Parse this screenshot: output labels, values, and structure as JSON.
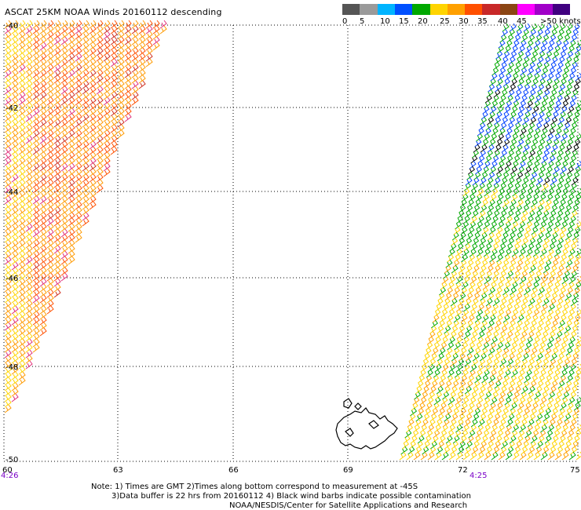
{
  "title": "ASCAT 25KM NOAA Winds 20160112 descending",
  "legend": {
    "colors": [
      "#555555",
      "#9a9a9a",
      "#00b4ff",
      "#0050ff",
      "#00a800",
      "#ffd400",
      "#ffa000",
      "#ff5000",
      "#c82828",
      "#8b4513",
      "#ff00ff",
      "#a000c8",
      "#400080"
    ],
    "labels": [
      "0",
      "5",
      "10",
      "15",
      "20",
      "25",
      "30",
      "35",
      "40",
      "45",
      ">50 knots"
    ]
  },
  "map": {
    "lat_labels": [
      "-40",
      "-42",
      "-44",
      "-46",
      "-48",
      "-50"
    ],
    "lon_labels": [
      "60",
      "63",
      "66",
      "69",
      "72",
      "75"
    ],
    "time_labels": [
      "4:26",
      "4:25"
    ]
  },
  "notes": {
    "line1": "Note: 1) Times are GMT 2)Times along bottom correspond to measurement at -45S",
    "line2": "3)Data buffer is 22 hrs from 20160112 4) Black wind barbs indicate possible contamination",
    "line3": "NOAA/NESDIS/Center for Satellite Applications and Research"
  }
}
